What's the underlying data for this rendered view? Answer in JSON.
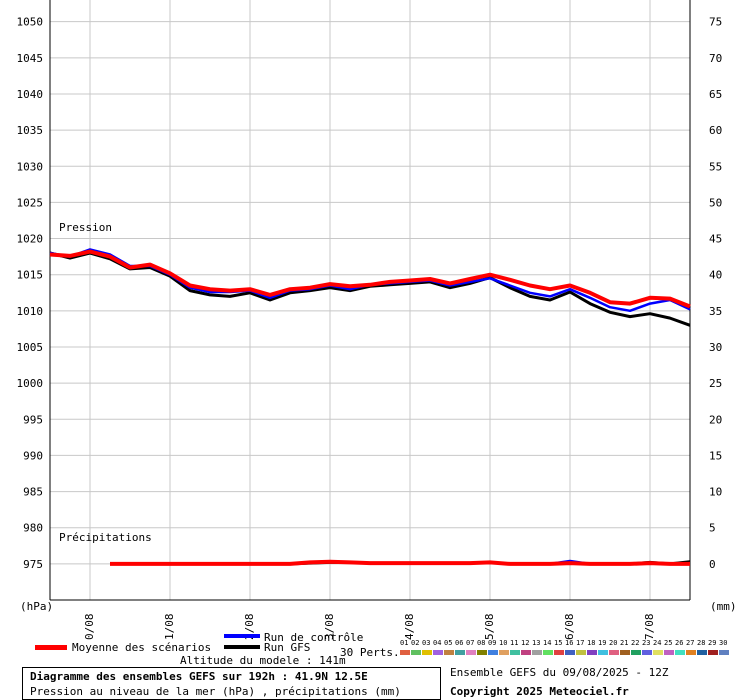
{
  "chart_data": {
    "type": "line",
    "left_axis": {
      "unit_label": "(hPa)",
      "range": [
        970,
        1053
      ],
      "ticks": [
        975,
        980,
        985,
        990,
        995,
        1000,
        1005,
        1010,
        1015,
        1020,
        1025,
        1030,
        1035,
        1040,
        1045,
        1050
      ]
    },
    "right_axis": {
      "unit_label": "(mm)",
      "range": [
        -5,
        78
      ],
      "ticks": [
        0,
        5,
        10,
        15,
        20,
        25,
        30,
        35,
        40,
        45,
        50,
        55,
        60,
        65,
        70,
        75
      ]
    },
    "x_dates": [
      "10/08",
      "11/08",
      "12/08",
      "13/08",
      "14/08",
      "15/08",
      "16/08",
      "17/08"
    ],
    "section_labels": {
      "pressure": "Pression",
      "precip": "Précipitations"
    },
    "grid": true,
    "x_hours": [
      0,
      6,
      12,
      18,
      24,
      30,
      36,
      42,
      48,
      54,
      60,
      66,
      72,
      78,
      84,
      90,
      96,
      102,
      108,
      114,
      120,
      126,
      132,
      138,
      144,
      150,
      156,
      162,
      168,
      174,
      180,
      186,
      192
    ],
    "series": [
      {
        "name": "Moyenne des scénarios",
        "color": "#ff0000",
        "pressure": [
          1017.8,
          1017.6,
          1018.2,
          1017.5,
          1016.0,
          1016.4,
          1015.2,
          1013.5,
          1013.0,
          1012.8,
          1013.0,
          1012.2,
          1013.0,
          1013.2,
          1013.7,
          1013.4,
          1013.6,
          1014.0,
          1014.2,
          1014.4,
          1013.8,
          1014.4,
          1015.0,
          1014.3,
          1013.5,
          1013.0,
          1013.5,
          1012.5,
          1011.2,
          1011.0,
          1011.8,
          1011.7,
          1010.6
        ],
        "precip": [
          null,
          null,
          null,
          0,
          0,
          0,
          0,
          0,
          0,
          0,
          0,
          0,
          0,
          0.2,
          0.3,
          0.2,
          0.1,
          0.1,
          0.1,
          0.1,
          0.1,
          0.1,
          0.2,
          0,
          0,
          0,
          0.1,
          0,
          0,
          0,
          0.1,
          0,
          0
        ]
      },
      {
        "name": "Run de contrôle",
        "color": "#0000ff",
        "pressure": [
          1018.0,
          1017.5,
          1018.5,
          1017.8,
          1016.2,
          1016.2,
          1015.0,
          1013.2,
          1012.6,
          1012.6,
          1012.8,
          1011.8,
          1012.8,
          1013.0,
          1013.5,
          1013.0,
          1013.6,
          1013.8,
          1014.0,
          1014.2,
          1013.5,
          1014.0,
          1014.5,
          1013.5,
          1012.5,
          1012.0,
          1013.0,
          1011.8,
          1010.5,
          1010.0,
          1011.0,
          1011.5,
          1010.2
        ],
        "precip": [
          null,
          null,
          null,
          0,
          0,
          0,
          0,
          0,
          0,
          0,
          0,
          0,
          0,
          0.2,
          0.3,
          0.2,
          0.1,
          0.1,
          0.1,
          0.1,
          0.1,
          0.1,
          0.2,
          0,
          0,
          0,
          0.4,
          0,
          0,
          0,
          0.1,
          0,
          0
        ]
      },
      {
        "name": "Run GFS",
        "color": "#000000",
        "pressure": [
          1018.0,
          1017.3,
          1018.0,
          1017.2,
          1015.8,
          1016.0,
          1014.8,
          1012.8,
          1012.2,
          1012.0,
          1012.5,
          1011.5,
          1012.5,
          1012.8,
          1013.2,
          1012.8,
          1013.4,
          1013.6,
          1013.8,
          1014.0,
          1013.2,
          1013.8,
          1014.6,
          1013.2,
          1012.0,
          1011.5,
          1012.6,
          1011.0,
          1009.8,
          1009.2,
          1009.6,
          1009.0,
          1008.0
        ],
        "precip": [
          null,
          null,
          null,
          0,
          0,
          0,
          0,
          0,
          0,
          0,
          0,
          0,
          0,
          0.1,
          0.2,
          0.2,
          0.1,
          0.1,
          0.1,
          0.1,
          0.1,
          0.1,
          0.2,
          0,
          0,
          0,
          0.1,
          0,
          0,
          0,
          0.2,
          0,
          0.3
        ]
      }
    ]
  },
  "legend": {
    "mean_label": "Moyenne des scénarios",
    "control_label": "Run de contrôle",
    "gfs_label": "Run GFS",
    "perts_label": "30 Perts.",
    "pert_numbers": [
      "01",
      "02",
      "03",
      "04",
      "05",
      "06",
      "07",
      "08",
      "09",
      "10",
      "11",
      "12",
      "13",
      "14",
      "15",
      "16",
      "17",
      "18",
      "19",
      "20",
      "21",
      "22",
      "23",
      "24",
      "25",
      "26",
      "27",
      "28",
      "29",
      "30"
    ],
    "pert_colors": [
      "#e06040",
      "#60c060",
      "#e0c000",
      "#a060e0",
      "#c08040",
      "#40a0a0",
      "#e080c0",
      "#808000",
      "#4080e0",
      "#e0a060",
      "#40c0a0",
      "#c04080",
      "#a0a0a0",
      "#60e060",
      "#e04040",
      "#4060c0",
      "#c0c040",
      "#8040c0",
      "#40c0e0",
      "#e06080",
      "#a06020",
      "#20a060",
      "#6060e0",
      "#e0e060",
      "#c060c0",
      "#40e0c0",
      "#e08020",
      "#2060a0",
      "#a02020",
      "#6080c0"
    ],
    "altitude": "Altitude du modele : 141m"
  },
  "footer": {
    "title": "Diagramme des ensembles GEFS sur 192h : 41.9N 12.5E",
    "subtitle": "Pression au niveau de la mer (hPa) , précipitations (mm)",
    "run_info": "Ensemble GEFS du 09/08/2025 - 12Z",
    "copyright": "Copyright 2025 Meteociel.fr"
  }
}
